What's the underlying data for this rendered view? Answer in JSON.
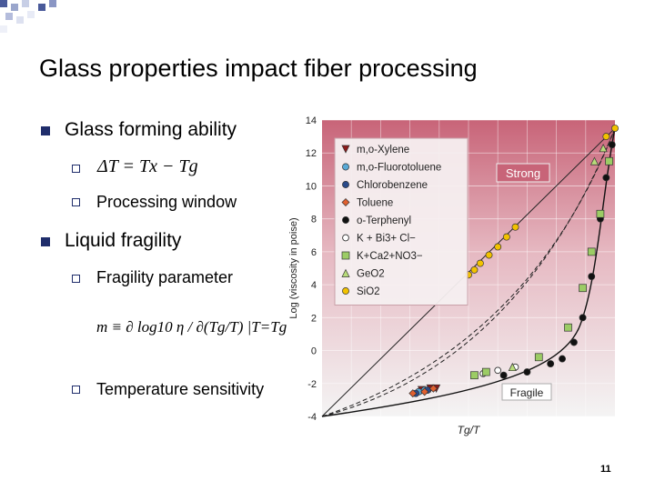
{
  "slide": {
    "title": "Glass properties impact fiber processing",
    "page_number": "11",
    "accent_color": "#4a5a9a",
    "bullets": [
      {
        "text": "Glass forming ability",
        "subs": [
          {
            "text": "",
            "formula": "ΔT = Tx − Tg"
          },
          {
            "text": "Processing window"
          }
        ]
      },
      {
        "text": "Liquid fragility",
        "subs": [
          {
            "text": "Fragility parameter"
          },
          {
            "text": "Temperature sensitivity"
          }
        ]
      }
    ],
    "formula_fragility": "m ≡ ∂ log10 η / ∂(Tg/T) |T=Tg"
  },
  "chart_data": {
    "type": "scatter",
    "title": "",
    "xlabel": "Tg/T",
    "ylabel": "Log (viscosity in poise)",
    "xlim": [
      0,
      1
    ],
    "ylim": [
      -4,
      14
    ],
    "yticks": [
      -4,
      -2,
      0,
      2,
      4,
      6,
      8,
      10,
      12,
      14
    ],
    "grid": true,
    "legend_position": "top-left",
    "annotations": {
      "strong": "Strong",
      "fragile": "Fragile"
    },
    "colors": {
      "background_top": "#c86478",
      "background_bottom": "#f2f2f2",
      "legend_bg": "#f5eff0"
    },
    "series": [
      {
        "name": "m,o-Xylene",
        "marker": "triangle-down",
        "color": "#8b1a1a",
        "points": [
          [
            0.34,
            -2.4
          ],
          [
            0.37,
            -2.3
          ],
          [
            0.39,
            -2.3
          ]
        ]
      },
      {
        "name": "m,o-Fluorotoluene",
        "marker": "circle",
        "color": "#5aa9d6",
        "points": [
          [
            0.33,
            -2.5
          ],
          [
            0.35,
            -2.4
          ]
        ]
      },
      {
        "name": "Chlorobenzene",
        "marker": "circle",
        "color": "#2a4a8a",
        "points": [
          [
            0.32,
            -2.6
          ],
          [
            0.36,
            -2.4
          ]
        ]
      },
      {
        "name": "Toluene",
        "marker": "diamond",
        "color": "#e06030",
        "points": [
          [
            0.31,
            -2.6
          ],
          [
            0.35,
            -2.5
          ],
          [
            0.38,
            -2.3
          ]
        ]
      },
      {
        "name": "o-Terphenyl",
        "marker": "circle",
        "color": "#111111",
        "points": [
          [
            0.62,
            -1.5
          ],
          [
            0.7,
            -1.3
          ],
          [
            0.78,
            -0.8
          ],
          [
            0.82,
            -0.5
          ],
          [
            0.86,
            0.5
          ],
          [
            0.89,
            2.0
          ],
          [
            0.92,
            4.5
          ],
          [
            0.95,
            8.0
          ],
          [
            0.97,
            10.5
          ],
          [
            0.99,
            12.5
          ]
        ]
      },
      {
        "name": "K + Bi3+ Cl−",
        "marker": "circle-open",
        "color": "#ffffff",
        "points": [
          [
            0.55,
            -1.4
          ],
          [
            0.6,
            -1.2
          ],
          [
            0.66,
            -1.0
          ]
        ]
      },
      {
        "name": "K+Ca2+NO3−",
        "marker": "square",
        "color": "#9ccc65",
        "points": [
          [
            0.52,
            -1.5
          ],
          [
            0.56,
            -1.3
          ],
          [
            0.74,
            -0.4
          ],
          [
            0.84,
            1.4
          ],
          [
            0.89,
            3.8
          ],
          [
            0.92,
            6.0
          ],
          [
            0.95,
            8.3
          ],
          [
            0.98,
            11.5
          ]
        ]
      },
      {
        "name": "GeO2",
        "marker": "triangle-up",
        "color": "#b8dc7a",
        "points": [
          [
            0.65,
            -1.0
          ],
          [
            0.93,
            11.5
          ],
          [
            0.96,
            12.3
          ]
        ]
      },
      {
        "name": "SiO2",
        "marker": "circle",
        "color": "#f2c200",
        "points": [
          [
            0.5,
            4.6
          ],
          [
            0.52,
            4.9
          ],
          [
            0.54,
            5.3
          ],
          [
            0.57,
            5.8
          ],
          [
            0.6,
            6.3
          ],
          [
            0.63,
            6.9
          ],
          [
            0.66,
            7.5
          ],
          [
            0.97,
            13.0
          ],
          [
            1.0,
            13.5
          ]
        ]
      }
    ]
  }
}
